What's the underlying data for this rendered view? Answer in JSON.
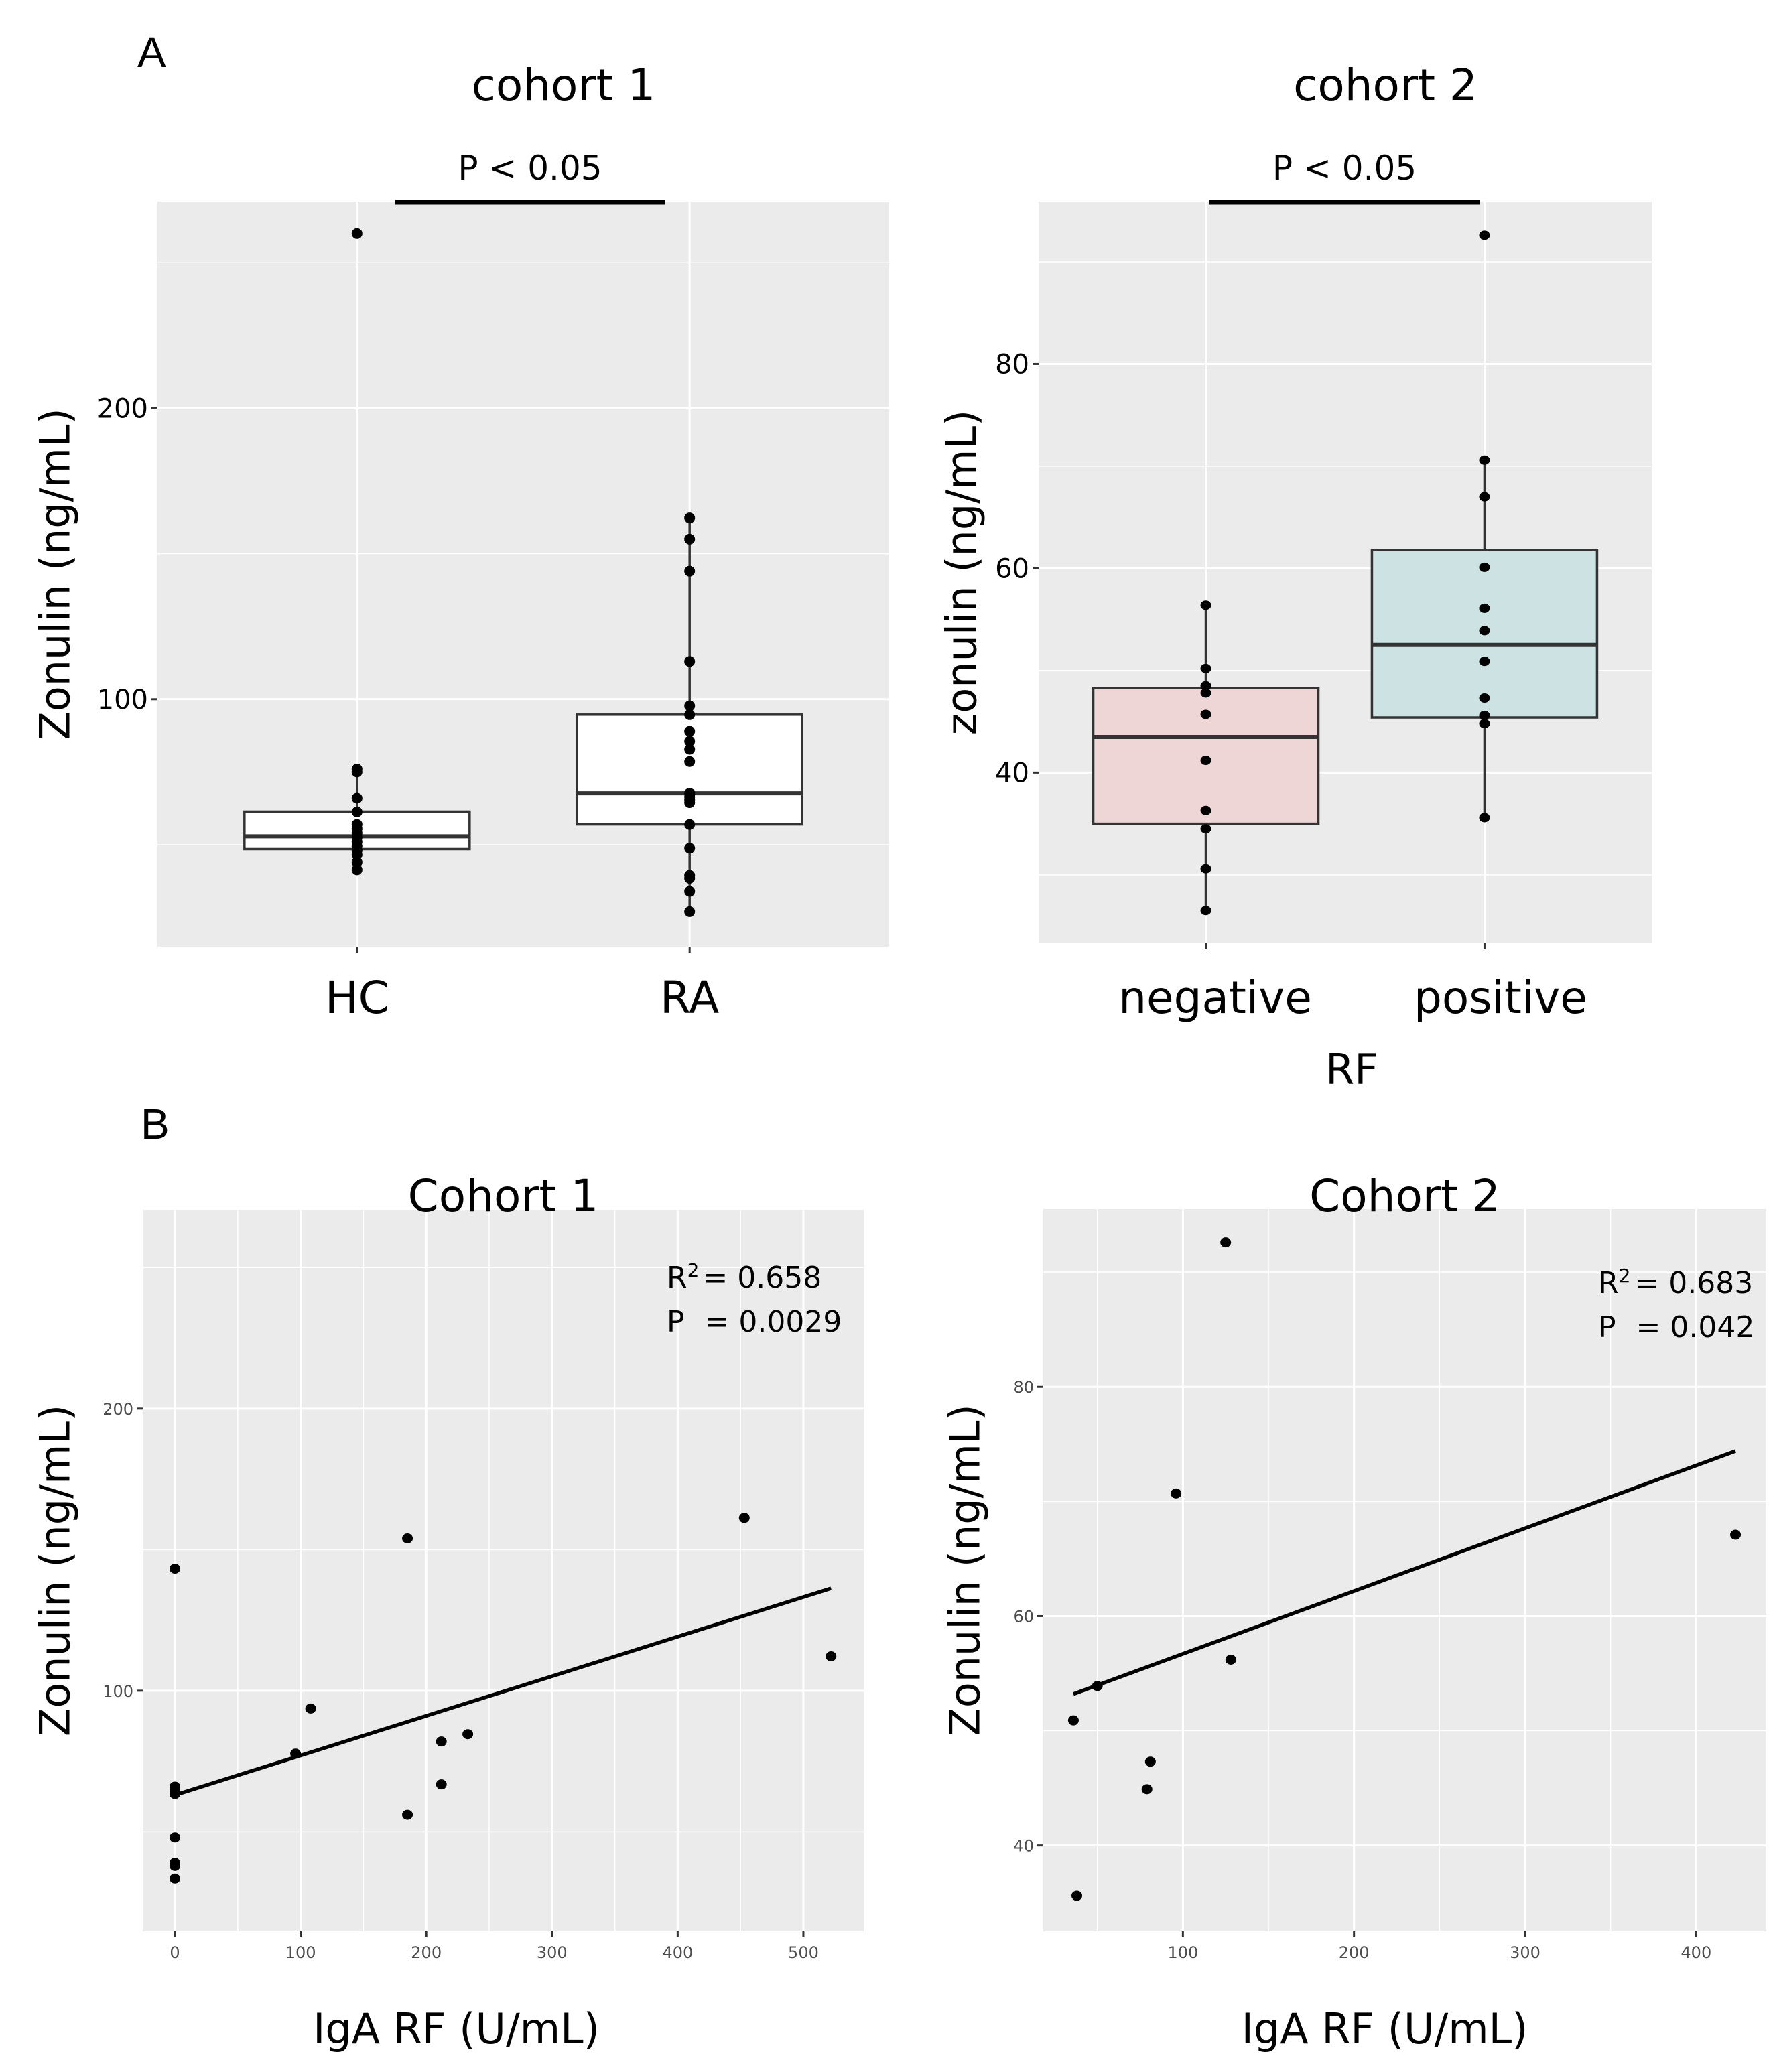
{
  "figure": {
    "panel_labels": [
      "A",
      "B"
    ]
  },
  "chart_data": [
    {
      "id": "A1",
      "type": "box",
      "title": "cohort 1",
      "annotation": "P < 0.05",
      "xlabel": "",
      "ylabel": "Zonulin (ng/mL)",
      "ylim": [
        15,
        271
      ],
      "yticks": [
        100,
        200
      ],
      "yminor": [
        50,
        150,
        250
      ],
      "categories": [
        "HC",
        "RA"
      ],
      "fill_colors": [
        "#ffffff",
        "#ffffff"
      ],
      "boxes": [
        {
          "category": "HC",
          "q1": 48.5,
          "median": 52.9,
          "q3": 61.4,
          "whisker_low": 41.4,
          "whisker_high": 76,
          "points": [
            260,
            76,
            75,
            66,
            61.3,
            57,
            55.5,
            54,
            52.5,
            51,
            49.5,
            48,
            46.5,
            44,
            41.4
          ]
        },
        {
          "category": "RA",
          "q1": 57,
          "median": 67.7,
          "q3": 94.7,
          "whisker_low": 27,
          "whisker_high": 162.3,
          "points": [
            162.3,
            155,
            144,
            113,
            97.7,
            94.7,
            89,
            85.6,
            82.8,
            78.6,
            67.7,
            66.5,
            65.5,
            64.5,
            57,
            48.8,
            39.5,
            38.5,
            34,
            27
          ]
        }
      ]
    },
    {
      "id": "A2",
      "type": "box",
      "title": "cohort 2",
      "annotation": "P < 0.05",
      "xlabel": "RF",
      "ylabel": "zonulin (ng/mL)",
      "ylim": [
        23.3,
        95.9
      ],
      "yticks": [
        40,
        60,
        80
      ],
      "yminor": [
        30,
        50,
        70,
        90
      ],
      "categories": [
        "negative",
        "positive"
      ],
      "fill_colors": [
        "#eed5d6",
        "#cce2e3"
      ],
      "boxes": [
        {
          "category": "negative",
          "q1": 35.0,
          "median": 43.5,
          "q3": 48.3,
          "whisker_low": 26.5,
          "whisker_high": 56.4,
          "points": [
            56.4,
            50.2,
            48.5,
            47.8,
            45.7,
            41.2,
            36.3,
            34.5,
            30.6,
            26.5
          ]
        },
        {
          "category": "positive",
          "q1": 45.4,
          "median": 52.5,
          "q3": 61.8,
          "whisker_low": 35.6,
          "whisker_high": 70.6,
          "points": [
            92.6,
            70.6,
            67,
            60.1,
            56.1,
            53.9,
            50.9,
            47.3,
            45.6,
            44.8,
            35.6
          ]
        }
      ]
    },
    {
      "id": "B1",
      "type": "scatter",
      "title": "Cohort 1",
      "xlabel": "IgA RF (U/mL)",
      "ylabel": "Zonulin (ng/mL)",
      "xlim": [
        -25.6,
        548
      ],
      "ylim": [
        14.7,
        270.5
      ],
      "xticks": [
        0,
        100,
        200,
        300,
        400,
        500
      ],
      "xminor": [
        50,
        150,
        250,
        350,
        450
      ],
      "yticks": [
        100,
        200
      ],
      "yminor": [
        50,
        150,
        250
      ],
      "stats": {
        "r2_label": "R",
        "r2_sup": "2",
        "r2_value": "= 0.658",
        "p_label": "P",
        "p_value": "= 0.0029"
      },
      "points": [
        {
          "x": 0,
          "y": 143.3
        },
        {
          "x": 185,
          "y": 154
        },
        {
          "x": 453,
          "y": 161.3
        },
        {
          "x": 522,
          "y": 112.2
        },
        {
          "x": 108,
          "y": 93.7
        },
        {
          "x": 96,
          "y": 77.7
        },
        {
          "x": 212,
          "y": 82
        },
        {
          "x": 233,
          "y": 84.6
        },
        {
          "x": 212,
          "y": 66.8
        },
        {
          "x": 185,
          "y": 56
        },
        {
          "x": 0,
          "y": 66
        },
        {
          "x": 0,
          "y": 64.7
        },
        {
          "x": 0,
          "y": 63.4
        },
        {
          "x": 0,
          "y": 48
        },
        {
          "x": 0,
          "y": 39
        },
        {
          "x": 0,
          "y": 37.9
        },
        {
          "x": 0,
          "y": 33.4
        }
      ],
      "fit_line": {
        "x": [
          0,
          522
        ],
        "y": [
          63,
          136.3
        ]
      }
    },
    {
      "id": "B2",
      "type": "scatter",
      "title": "Cohort 2",
      "xlabel": "IgA RF (U/mL)",
      "ylabel": "Zonulin (ng/mL)",
      "xlim": [
        18.4,
        441
      ],
      "ylim": [
        32.5,
        95.5
      ],
      "xticks": [
        100,
        200,
        300,
        400
      ],
      "xminor": [
        50,
        150,
        250,
        350
      ],
      "yticks": [
        40,
        60,
        80
      ],
      "yminor": [
        50,
        70,
        90
      ],
      "stats": {
        "r2_label": "R",
        "r2_sup": "2",
        "r2_value": "= 0.683",
        "p_label": "P",
        "p_value": "= 0.042"
      },
      "points": [
        {
          "x": 125,
          "y": 92.6
        },
        {
          "x": 96,
          "y": 70.7
        },
        {
          "x": 423,
          "y": 67.1
        },
        {
          "x": 128,
          "y": 56.2
        },
        {
          "x": 50,
          "y": 53.9
        },
        {
          "x": 36,
          "y": 50.9
        },
        {
          "x": 81,
          "y": 47.3
        },
        {
          "x": 79,
          "y": 44.9
        },
        {
          "x": 38,
          "y": 35.6
        }
      ],
      "fit_line": {
        "x": [
          36,
          423
        ],
        "y": [
          53.2,
          74.4
        ]
      }
    }
  ]
}
